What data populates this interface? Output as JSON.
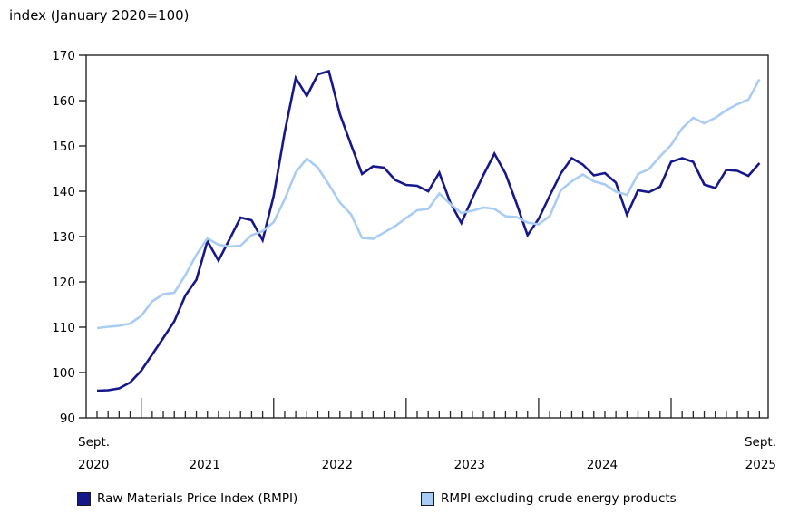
{
  "title": "index (January 2020=100)",
  "y_axis": {
    "ticks": [
      170,
      160,
      150,
      140,
      130,
      120,
      110,
      100,
      90
    ],
    "min": 90,
    "max": 170
  },
  "x_axis": {
    "first_label_top": "Sept.",
    "first_label_bottom": "2020",
    "year_labels": [
      "2021",
      "2022",
      "2023",
      "2024"
    ],
    "last_label_top": "Sept.",
    "last_label_bottom": "2025"
  },
  "legend": [
    {
      "label": "Raw Materials Price Index (RMPI)",
      "color": "#17178c"
    },
    {
      "label": "RMPI excluding crude energy products",
      "color": "#a9cdf2"
    }
  ],
  "chart_data": {
    "type": "line",
    "title": "index (January 2020=100)",
    "xlabel": "",
    "ylabel": "index (January 2020=100)",
    "ylim": [
      90,
      170
    ],
    "grid": false,
    "legend_position": "bottom",
    "x": [
      "2020-09",
      "2020-10",
      "2020-11",
      "2020-12",
      "2021-01",
      "2021-02",
      "2021-03",
      "2021-04",
      "2021-05",
      "2021-06",
      "2021-07",
      "2021-08",
      "2021-09",
      "2021-10",
      "2021-11",
      "2021-12",
      "2022-01",
      "2022-02",
      "2022-03",
      "2022-04",
      "2022-05",
      "2022-06",
      "2022-07",
      "2022-08",
      "2022-09",
      "2022-10",
      "2022-11",
      "2022-12",
      "2023-01",
      "2023-02",
      "2023-03",
      "2023-04",
      "2023-05",
      "2023-06",
      "2023-07",
      "2023-08",
      "2023-09",
      "2023-10",
      "2023-11",
      "2023-12",
      "2024-01",
      "2024-02",
      "2024-03",
      "2024-04",
      "2024-05",
      "2024-06",
      "2024-07",
      "2024-08",
      "2024-09",
      "2024-10",
      "2024-11",
      "2024-12",
      "2025-01",
      "2025-02",
      "2025-03",
      "2025-04",
      "2025-05",
      "2025-06",
      "2025-07",
      "2025-08",
      "2025-09"
    ],
    "series": [
      {
        "name": "Raw Materials Price Index (RMPI)",
        "color": "#17178c",
        "values": [
          96.0,
          96.1,
          96.5,
          97.8,
          100.4,
          104.0,
          107.6,
          111.3,
          117.0,
          120.5,
          129.0,
          124.7,
          129.4,
          134.2,
          133.6,
          129.2,
          139.0,
          153.0,
          165.0,
          161.0,
          165.8,
          166.5,
          157.0,
          150.3,
          143.8,
          145.5,
          145.2,
          142.5,
          141.4,
          141.2,
          140.0,
          144.1,
          137.5,
          133.0,
          138.5,
          143.6,
          148.3,
          143.9,
          137.3,
          130.3,
          133.9,
          139.0,
          143.9,
          147.3,
          145.9,
          143.5,
          144.0,
          141.9,
          134.8,
          140.2,
          139.8,
          141.0,
          146.5,
          147.3,
          146.5,
          141.5,
          140.7,
          144.7,
          144.5,
          143.4,
          146.2
        ]
      },
      {
        "name": "RMPI excluding crude energy products",
        "color": "#a9cdf2",
        "values": [
          109.8,
          110.1,
          110.3,
          110.8,
          112.5,
          115.7,
          117.3,
          117.6,
          121.5,
          126.0,
          129.6,
          128.2,
          127.8,
          128.0,
          130.3,
          131.2,
          133.2,
          138.2,
          144.2,
          147.2,
          145.2,
          141.5,
          137.5,
          134.9,
          129.7,
          129.5,
          130.9,
          132.3,
          134.1,
          135.8,
          136.1,
          139.5,
          137.2,
          135.2,
          135.7,
          136.4,
          136.1,
          134.5,
          134.3,
          133.1,
          132.7,
          134.5,
          140.2,
          142.2,
          143.7,
          142.2,
          141.5,
          139.9,
          139.2,
          143.8,
          144.9,
          147.7,
          150.2,
          153.9,
          156.2,
          155.0,
          156.2,
          157.9,
          159.2,
          160.2,
          164.7
        ]
      }
    ]
  }
}
